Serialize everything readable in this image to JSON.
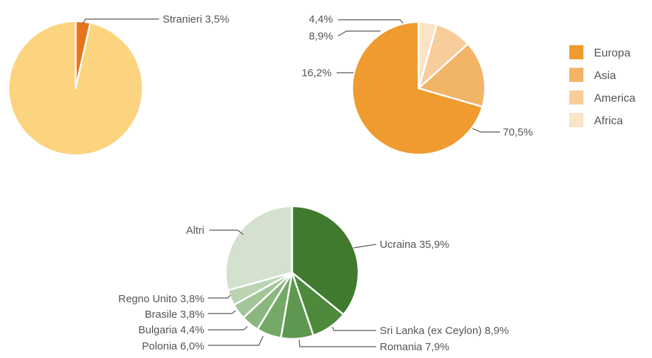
{
  "chart_data": [
    {
      "type": "pie",
      "slices": [
        {
          "label": "Stranieri",
          "value": 3.5,
          "display": "Stranieri 3,5%",
          "color": "#e8731b"
        },
        {
          "label": "",
          "value": 96.5,
          "display": "",
          "color": "#fcd47f"
        }
      ]
    },
    {
      "type": "pie",
      "slices": [
        {
          "label": "Europa",
          "value": 70.5,
          "display": "70,5%",
          "color": "#ef9b2f"
        },
        {
          "label": "Asia",
          "value": 16.2,
          "display": "16,2%",
          "color": "#f2b467"
        },
        {
          "label": "America",
          "value": 8.9,
          "display": "8,9%",
          "color": "#f7cd9b"
        },
        {
          "label": "Africa",
          "value": 4.4,
          "display": "4,4%",
          "color": "#fbe3c7"
        }
      ],
      "legend": [
        "Europa",
        "Asia",
        "America",
        "Africa"
      ],
      "legend_position": "right"
    },
    {
      "type": "pie",
      "slices": [
        {
          "label": "Ucraina",
          "value": 35.9,
          "display": "Ucraina 35,9%",
          "color": "#3f7a2f"
        },
        {
          "label": "Sri Lanka (ex Ceylon)",
          "value": 8.9,
          "display": "Sri Lanka (ex Ceylon) 8,9%",
          "color": "#4d8a3c"
        },
        {
          "label": "Romania",
          "value": 7.9,
          "display": "Romania 7,9%",
          "color": "#5f9850"
        },
        {
          "label": "Polonia",
          "value": 6.0,
          "display": "Polonia 6,0%",
          "color": "#74a866"
        },
        {
          "label": "Bulgaria",
          "value": 4.4,
          "display": "Bulgaria 4,4%",
          "color": "#8bb77f"
        },
        {
          "label": "Brasile",
          "value": 3.8,
          "display": "Brasile 3,8%",
          "color": "#a3c699"
        },
        {
          "label": "Regno Unito",
          "value": 3.8,
          "display": "Regno Unito 3,8%",
          "color": "#bad4b2"
        },
        {
          "label": "Altri",
          "value": 29.3,
          "display": "Altri",
          "color": "#d4e1cf"
        }
      ]
    }
  ]
}
